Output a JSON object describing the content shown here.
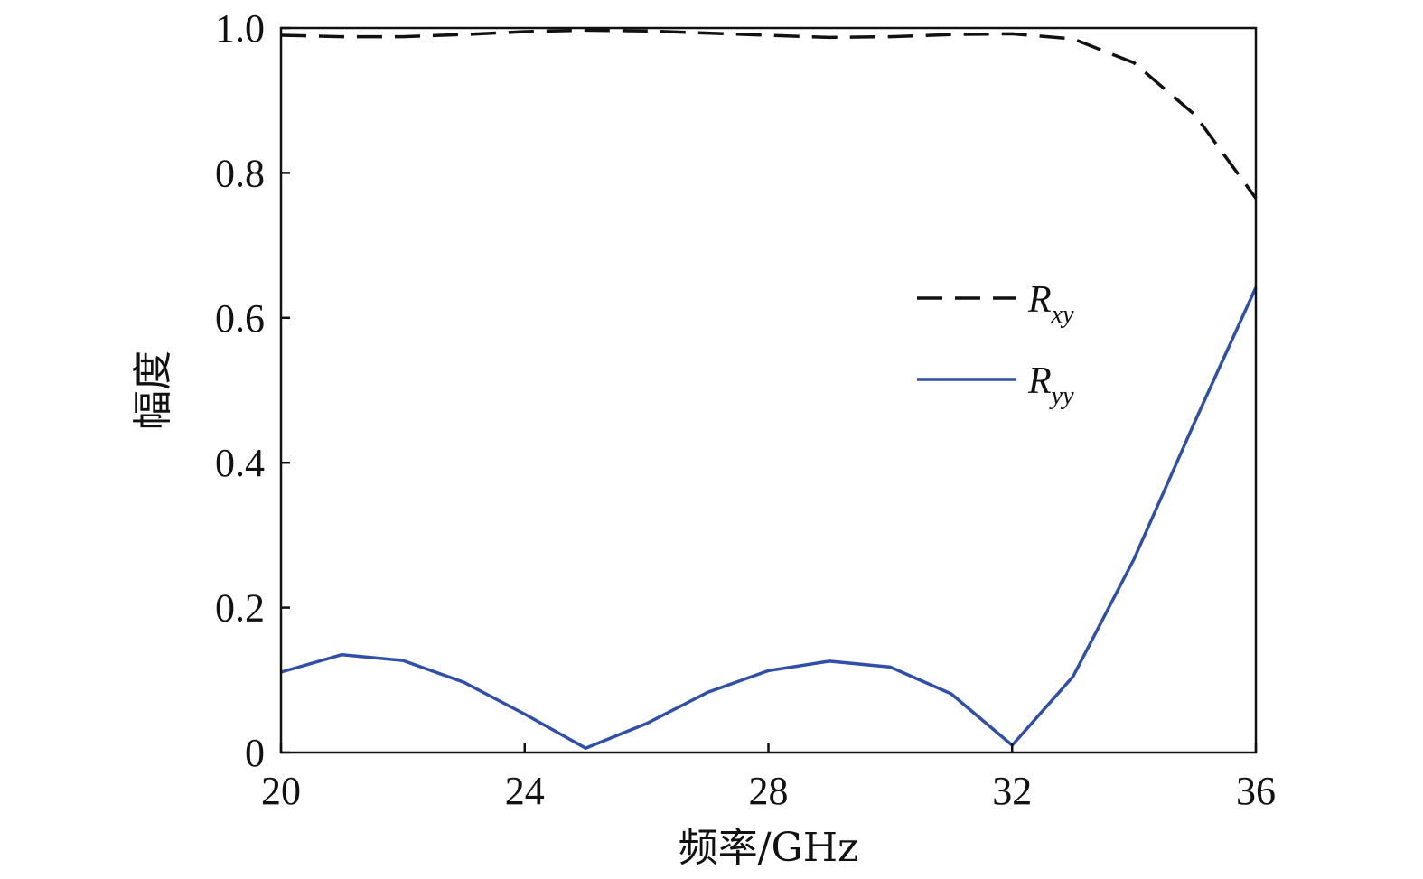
{
  "chart_data": {
    "type": "line",
    "xlabel": "频率/GHz",
    "ylabel": "幅度",
    "xlim": [
      20,
      36
    ],
    "ylim": [
      0,
      1.0
    ],
    "xticks": [
      20,
      24,
      28,
      32,
      36
    ],
    "xtick_labels": [
      "20",
      "24",
      "28",
      "32",
      "36"
    ],
    "yticks": [
      0,
      0.2,
      0.4,
      0.6,
      0.8,
      1.0
    ],
    "ytick_labels": [
      "0",
      "0.2",
      "0.4",
      "0.6",
      "0.8",
      "1.0"
    ],
    "grid": false,
    "legend_position": "right-middle",
    "x": [
      20,
      21,
      22,
      23,
      24,
      25,
      26,
      27,
      28,
      29,
      30,
      31,
      32,
      33,
      34,
      35,
      36
    ],
    "series": [
      {
        "name": "R",
        "subscript": "xy",
        "style": "dashed",
        "color": "#111111",
        "values": [
          0.99,
          0.988,
          0.988,
          0.991,
          0.995,
          0.997,
          0.996,
          0.993,
          0.99,
          0.987,
          0.988,
          0.991,
          0.992,
          0.985,
          0.952,
          0.88,
          0.765
        ]
      },
      {
        "name": "R",
        "subscript": "yy",
        "style": "solid",
        "color": "#2f4fa8",
        "values": [
          0.111,
          0.135,
          0.127,
          0.097,
          0.053,
          0.006,
          0.04,
          0.083,
          0.113,
          0.126,
          0.118,
          0.081,
          0.01,
          0.105,
          0.267,
          0.457,
          0.642
        ]
      }
    ]
  }
}
